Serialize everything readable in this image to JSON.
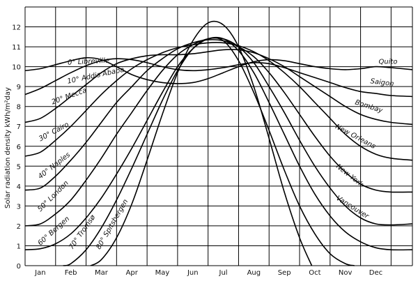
{
  "chart_data": {
    "type": "line",
    "ylabel": "Solar radiation density  kWh/m²day",
    "xlabel": "",
    "title": "",
    "x": [
      "Jan",
      "Feb",
      "Mar",
      "Apr",
      "May",
      "Jun",
      "Jul",
      "Aug",
      "Sep",
      "Oct",
      "Nov",
      "Dec"
    ],
    "y_ticks": [
      "0",
      "1",
      "2",
      "3",
      "4",
      "5",
      "6",
      "7",
      "8",
      "9",
      "10",
      "11",
      "12"
    ],
    "ylim": [
      0,
      13
    ],
    "grid": true,
    "series": [
      {
        "latitude_label": "0° Libreville",
        "city_label": "Quito",
        "label_month": 0.9,
        "label_value": 10.1,
        "label_angle": -3,
        "city_label_month": 11.4,
        "city_label_value": 10.15,
        "city_label_angle": 0,
        "values": [
          [
            -0.5,
            9.8
          ],
          [
            0,
            9.9
          ],
          [
            0.5,
            10.1
          ],
          [
            1,
            10.3
          ],
          [
            1.5,
            10.45
          ],
          [
            2,
            10.35
          ],
          [
            2.5,
            10.0
          ],
          [
            3,
            9.6
          ],
          [
            3.5,
            9.35
          ],
          [
            4,
            9.2
          ],
          [
            4.5,
            9.15
          ],
          [
            5,
            9.2
          ],
          [
            5.5,
            9.4
          ],
          [
            6,
            9.7
          ],
          [
            6.5,
            10.0
          ],
          [
            7,
            10.25
          ],
          [
            7.5,
            10.35
          ],
          [
            8,
            10.3
          ],
          [
            8.5,
            10.15
          ],
          [
            9,
            10.0
          ],
          [
            9.5,
            9.9
          ],
          [
            10,
            9.85
          ],
          [
            10.5,
            9.9
          ],
          [
            11,
            10.0
          ],
          [
            11.5,
            9.95
          ],
          [
            12.2,
            9.85
          ]
        ]
      },
      {
        "latitude_label": "10° Addis Ababa",
        "city_label": "Saigon",
        "label_month": 0.9,
        "label_value": 9.15,
        "label_angle": -12,
        "city_label_month": 11.2,
        "city_label_value": 9.1,
        "city_label_angle": 7,
        "values": [
          [
            -0.5,
            8.6
          ],
          [
            0,
            8.9
          ],
          [
            0.5,
            9.3
          ],
          [
            1,
            9.7
          ],
          [
            1.5,
            10.05
          ],
          [
            2,
            10.3
          ],
          [
            2.5,
            10.4
          ],
          [
            3,
            10.35
          ],
          [
            3.5,
            10.2
          ],
          [
            4,
            10.0
          ],
          [
            4.5,
            9.85
          ],
          [
            5,
            9.8
          ],
          [
            5.5,
            9.85
          ],
          [
            6,
            9.95
          ],
          [
            6.5,
            10.1
          ],
          [
            7,
            10.2
          ],
          [
            7.5,
            10.15
          ],
          [
            8,
            9.95
          ],
          [
            8.5,
            9.7
          ],
          [
            9,
            9.45
          ],
          [
            9.5,
            9.2
          ],
          [
            10,
            8.95
          ],
          [
            10.5,
            8.75
          ],
          [
            11,
            8.65
          ],
          [
            11.5,
            8.55
          ],
          [
            12.2,
            8.5
          ]
        ]
      },
      {
        "latitude_label": "20° Mecca",
        "city_label": "Bombay",
        "label_month": 0.4,
        "label_value": 8.1,
        "label_angle": -20,
        "city_label_month": 10.75,
        "city_label_value": 7.9,
        "city_label_angle": 18,
        "values": [
          [
            -0.5,
            7.2
          ],
          [
            0,
            7.4
          ],
          [
            0.5,
            7.9
          ],
          [
            1,
            8.5
          ],
          [
            1.5,
            9.1
          ],
          [
            2,
            9.7
          ],
          [
            2.5,
            10.15
          ],
          [
            3,
            10.4
          ],
          [
            3.5,
            10.55
          ],
          [
            4,
            10.6
          ],
          [
            4.5,
            10.6
          ],
          [
            5,
            10.65
          ],
          [
            5.5,
            10.75
          ],
          [
            6,
            10.85
          ],
          [
            6.5,
            10.85
          ],
          [
            7,
            10.7
          ],
          [
            7.5,
            10.4
          ],
          [
            8,
            10.0
          ],
          [
            8.5,
            9.5
          ],
          [
            9,
            9.0
          ],
          [
            9.5,
            8.5
          ],
          [
            10,
            8.0
          ],
          [
            10.5,
            7.6
          ],
          [
            11,
            7.35
          ],
          [
            11.5,
            7.2
          ],
          [
            12.2,
            7.1
          ]
        ]
      },
      {
        "latitude_label": "30° Cairo",
        "city_label": "New Orleans",
        "label_month": 0.0,
        "label_value": 6.25,
        "label_angle": -28,
        "city_label_month": 10.3,
        "city_label_value": 6.4,
        "city_label_angle": 28,
        "values": [
          [
            -0.5,
            5.5
          ],
          [
            0,
            5.7
          ],
          [
            0.5,
            6.3
          ],
          [
            1,
            7.0
          ],
          [
            1.5,
            7.8
          ],
          [
            2,
            8.6
          ],
          [
            2.5,
            9.3
          ],
          [
            3,
            9.9
          ],
          [
            3.5,
            10.35
          ],
          [
            4,
            10.7
          ],
          [
            4.5,
            10.95
          ],
          [
            5,
            11.1
          ],
          [
            5.5,
            11.2
          ],
          [
            6,
            11.2
          ],
          [
            6.5,
            11.05
          ],
          [
            7,
            10.75
          ],
          [
            7.5,
            10.3
          ],
          [
            8,
            9.7
          ],
          [
            8.5,
            9.0
          ],
          [
            9,
            8.2
          ],
          [
            9.5,
            7.4
          ],
          [
            10,
            6.6
          ],
          [
            10.5,
            6.0
          ],
          [
            11,
            5.6
          ],
          [
            11.5,
            5.4
          ],
          [
            12.2,
            5.3
          ]
        ]
      },
      {
        "latitude_label": "40° Naples",
        "city_label": "New York",
        "label_month": 0.0,
        "label_value": 4.35,
        "label_angle": -38,
        "city_label_month": 10.1,
        "city_label_value": 4.45,
        "city_label_angle": 38,
        "values": [
          [
            -0.5,
            3.8
          ],
          [
            0,
            3.9
          ],
          [
            0.5,
            4.5
          ],
          [
            1,
            5.3
          ],
          [
            1.5,
            6.2
          ],
          [
            2,
            7.2
          ],
          [
            2.5,
            8.2
          ],
          [
            3,
            9.0
          ],
          [
            3.5,
            9.8
          ],
          [
            4,
            10.4
          ],
          [
            4.5,
            10.9
          ],
          [
            5,
            11.2
          ],
          [
            5.5,
            11.35
          ],
          [
            6,
            11.3
          ],
          [
            6.5,
            11.0
          ],
          [
            7,
            10.5
          ],
          [
            7.5,
            9.7
          ],
          [
            8,
            8.7
          ],
          [
            8.5,
            7.6
          ],
          [
            9,
            6.5
          ],
          [
            9.5,
            5.5
          ],
          [
            10,
            4.7
          ],
          [
            10.5,
            4.1
          ],
          [
            11,
            3.8
          ],
          [
            11.5,
            3.7
          ],
          [
            12.2,
            3.7
          ]
        ]
      },
      {
        "latitude_label": "50° London",
        "city_label": "Vancouver",
        "label_month": 0.0,
        "label_value": 2.7,
        "label_angle": -45,
        "city_label_month": 10.2,
        "city_label_value": 2.85,
        "city_label_angle": 32,
        "values": [
          [
            -0.5,
            2.0
          ],
          [
            0,
            2.1
          ],
          [
            0.5,
            2.6
          ],
          [
            1,
            3.3
          ],
          [
            1.5,
            4.3
          ],
          [
            2,
            5.4
          ],
          [
            2.5,
            6.6
          ],
          [
            3,
            7.7
          ],
          [
            3.5,
            8.8
          ],
          [
            4,
            9.8
          ],
          [
            4.5,
            10.6
          ],
          [
            5,
            11.1
          ],
          [
            5.5,
            11.4
          ],
          [
            6,
            11.4
          ],
          [
            6.5,
            11.0
          ],
          [
            7,
            10.2
          ],
          [
            7.5,
            9.0
          ],
          [
            8,
            7.7
          ],
          [
            8.5,
            6.3
          ],
          [
            9,
            5.0
          ],
          [
            9.5,
            3.9
          ],
          [
            10,
            3.0
          ],
          [
            10.5,
            2.4
          ],
          [
            11,
            2.1
          ],
          [
            11.5,
            2.05
          ],
          [
            12.2,
            2.1
          ]
        ]
      },
      {
        "latitude_label": "60° Bergen",
        "city_label": "",
        "label_month": 0.0,
        "label_value": 1.0,
        "label_angle": -42,
        "values": [
          [
            -0.5,
            0.8
          ],
          [
            0,
            0.85
          ],
          [
            0.5,
            1.1
          ],
          [
            1,
            1.6
          ],
          [
            1.5,
            2.4
          ],
          [
            2,
            3.4
          ],
          [
            2.5,
            4.6
          ],
          [
            3,
            5.9
          ],
          [
            3.5,
            7.3
          ],
          [
            4,
            8.7
          ],
          [
            4.5,
            10.0
          ],
          [
            5,
            10.9
          ],
          [
            5.5,
            11.4
          ],
          [
            6,
            11.4
          ],
          [
            6.5,
            10.8
          ],
          [
            7,
            9.7
          ],
          [
            7.5,
            8.2
          ],
          [
            8,
            6.6
          ],
          [
            8.5,
            5.0
          ],
          [
            9,
            3.6
          ],
          [
            9.5,
            2.5
          ],
          [
            10,
            1.7
          ],
          [
            10.5,
            1.2
          ],
          [
            11,
            0.9
          ],
          [
            11.5,
            0.8
          ],
          [
            12.2,
            0.8
          ]
        ]
      },
      {
        "latitude_label": "70° Tromsø",
        "city_label": "",
        "label_month": 1.05,
        "label_value": 0.8,
        "label_angle": -55,
        "values": [
          [
            0.75,
            0.0
          ],
          [
            1,
            0.1
          ],
          [
            1.5,
            0.8
          ],
          [
            2,
            1.9
          ],
          [
            2.5,
            3.3
          ],
          [
            3,
            4.9
          ],
          [
            3.5,
            6.6
          ],
          [
            4,
            8.3
          ],
          [
            4.5,
            9.8
          ],
          [
            5,
            10.9
          ],
          [
            5.5,
            11.4
          ],
          [
            6,
            11.3
          ],
          [
            6.5,
            10.3
          ],
          [
            7,
            8.7
          ],
          [
            7.5,
            6.8
          ],
          [
            8,
            4.8
          ],
          [
            8.5,
            3.0
          ],
          [
            9,
            1.6
          ],
          [
            9.5,
            0.6
          ],
          [
            10,
            0.1
          ],
          [
            10.3,
            0.0
          ]
        ]
      },
      {
        "latitude_label": "80° Spitsbergen",
        "city_label": "",
        "label_month": 1.95,
        "label_value": 0.8,
        "label_angle": -60,
        "values": [
          [
            1.65,
            0.0
          ],
          [
            2,
            0.3
          ],
          [
            2.5,
            1.4
          ],
          [
            3,
            3.1
          ],
          [
            3.5,
            5.3
          ],
          [
            4,
            7.6
          ],
          [
            4.5,
            9.7
          ],
          [
            5,
            11.3
          ],
          [
            5.5,
            12.2
          ],
          [
            6,
            12.1
          ],
          [
            6.5,
            11.0
          ],
          [
            7,
            9.0
          ],
          [
            7.5,
            6.4
          ],
          [
            8,
            3.7
          ],
          [
            8.5,
            1.4
          ],
          [
            8.9,
            0.0
          ]
        ]
      }
    ]
  }
}
